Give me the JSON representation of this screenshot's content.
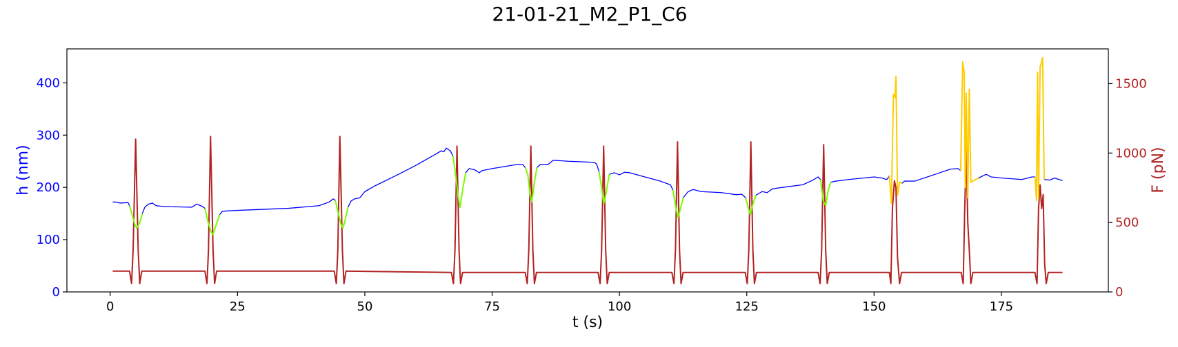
{
  "chart_data": {
    "type": "line",
    "title": "21-01-21_M2_P1_C6",
    "xlabel": "t (s)",
    "ylabel_left": "h (nm)",
    "ylabel_right": "F (pN)",
    "xlim": [
      -8.5,
      196
    ],
    "ylim_left": [
      0,
      465
    ],
    "ylim_right": [
      0,
      1750
    ],
    "x_ticks": [
      0,
      25,
      50,
      75,
      100,
      125,
      150,
      175
    ],
    "y_ticks_left": [
      0,
      100,
      200,
      300,
      400
    ],
    "y_ticks_right": [
      0,
      500,
      1000,
      1500
    ],
    "grid": false,
    "colors": {
      "height": "#0000ff",
      "indent": "#7cfc00",
      "spike": "#ffcc00",
      "force": "#b22222",
      "left_axis": "#0000ff",
      "right_axis": "#b22222"
    },
    "height_series": [
      [
        0.5,
        172
      ],
      [
        1,
        172
      ],
      [
        2,
        170
      ],
      [
        3.5,
        171
      ],
      [
        3.8,
        165
      ],
      [
        4.2,
        152
      ],
      [
        4.8,
        130
      ],
      [
        5.2,
        122
      ],
      [
        5.8,
        132
      ],
      [
        6.3,
        150
      ],
      [
        6.8,
        162
      ],
      [
        7.5,
        168
      ],
      [
        8.3,
        170
      ],
      [
        9,
        165
      ],
      [
        10,
        164
      ],
      [
        12,
        163
      ],
      [
        16,
        162
      ],
      [
        17,
        168
      ],
      [
        18,
        164
      ],
      [
        18.6,
        160
      ],
      [
        19.2,
        135
      ],
      [
        19.8,
        115
      ],
      [
        20.2,
        110
      ],
      [
        20.8,
        128
      ],
      [
        21.5,
        148
      ],
      [
        22,
        154
      ],
      [
        23,
        155
      ],
      [
        25,
        156
      ],
      [
        30,
        158
      ],
      [
        35,
        160
      ],
      [
        41,
        165
      ],
      [
        43,
        172
      ],
      [
        43.8,
        178
      ],
      [
        44.2,
        175
      ],
      [
        44.8,
        150
      ],
      [
        45.3,
        130
      ],
      [
        45.7,
        122
      ],
      [
        46.2,
        140
      ],
      [
        46.7,
        162
      ],
      [
        47.3,
        174
      ],
      [
        48,
        178
      ],
      [
        49,
        180
      ],
      [
        50,
        192
      ],
      [
        52,
        203
      ],
      [
        56,
        222
      ],
      [
        60,
        242
      ],
      [
        64,
        264
      ],
      [
        65,
        270
      ],
      [
        65.5,
        268
      ],
      [
        66,
        275
      ],
      [
        66.8,
        270
      ],
      [
        67.3,
        260
      ],
      [
        67.8,
        228
      ],
      [
        68.3,
        185
      ],
      [
        68.7,
        162
      ],
      [
        69.2,
        195
      ],
      [
        69.8,
        228
      ],
      [
        70.5,
        236
      ],
      [
        71.5,
        234
      ],
      [
        72.5,
        228
      ],
      [
        73,
        232
      ],
      [
        75,
        236
      ],
      [
        80,
        244
      ],
      [
        81,
        244
      ],
      [
        81.5,
        238
      ],
      [
        82,
        225
      ],
      [
        82.4,
        190
      ],
      [
        82.8,
        172
      ],
      [
        83.3,
        210
      ],
      [
        83.8,
        238
      ],
      [
        84.5,
        244
      ],
      [
        86,
        244
      ],
      [
        87,
        252
      ],
      [
        90,
        250
      ],
      [
        95,
        248
      ],
      [
        95.5,
        245
      ],
      [
        96,
        230
      ],
      [
        96.5,
        200
      ],
      [
        96.9,
        168
      ],
      [
        97.4,
        190
      ],
      [
        98,
        225
      ],
      [
        99,
        228
      ],
      [
        100,
        224
      ],
      [
        101,
        229
      ],
      [
        102,
        228
      ],
      [
        105,
        220
      ],
      [
        108,
        212
      ],
      [
        110,
        205
      ],
      [
        110.5,
        195
      ],
      [
        111,
        165
      ],
      [
        111.5,
        142
      ],
      [
        112,
        160
      ],
      [
        112.5,
        180
      ],
      [
        113.5,
        192
      ],
      [
        114.5,
        196
      ],
      [
        116,
        192
      ],
      [
        120,
        190
      ],
      [
        123,
        186
      ],
      [
        124,
        187
      ],
      [
        124.8,
        180
      ],
      [
        125.3,
        160
      ],
      [
        125.7,
        148
      ],
      [
        126.2,
        168
      ],
      [
        126.8,
        185
      ],
      [
        128,
        192
      ],
      [
        129,
        190
      ],
      [
        130,
        197
      ],
      [
        132,
        200
      ],
      [
        136,
        205
      ],
      [
        138,
        214
      ],
      [
        139,
        220
      ],
      [
        139.5,
        215
      ],
      [
        140,
        175
      ],
      [
        140.5,
        165
      ],
      [
        141,
        195
      ],
      [
        141.5,
        210
      ],
      [
        142.5,
        212
      ],
      [
        145,
        215
      ],
      [
        150,
        220
      ],
      [
        151.5,
        218
      ],
      [
        152.5,
        215
      ],
      [
        153,
        222
      ],
      [
        153.4,
        170
      ],
      [
        153.8,
        378
      ],
      [
        154.1,
        372
      ],
      [
        154.3,
        412
      ],
      [
        154.6,
        185
      ],
      [
        155,
        210
      ],
      [
        155.5,
        208
      ],
      [
        156,
        212
      ],
      [
        158,
        212
      ],
      [
        162,
        225
      ],
      [
        165,
        235
      ],
      [
        166.5,
        236
      ],
      [
        167,
        232
      ],
      [
        167.4,
        440
      ],
      [
        167.7,
        420
      ],
      [
        167.9,
        200
      ],
      [
        168.1,
        380
      ],
      [
        168.4,
        180
      ],
      [
        168.7,
        388
      ],
      [
        169,
        210
      ],
      [
        170.5,
        218
      ],
      [
        172,
        225
      ],
      [
        173,
        220
      ],
      [
        175,
        218
      ],
      [
        179,
        215
      ],
      [
        181,
        220
      ],
      [
        181.6,
        220
      ],
      [
        181.9,
        175
      ],
      [
        182.1,
        420
      ],
      [
        182.3,
        180
      ],
      [
        182.6,
        430
      ],
      [
        182.9,
        440
      ],
      [
        183.1,
        448
      ],
      [
        183.4,
        215
      ],
      [
        184.5,
        214
      ],
      [
        185.5,
        218
      ],
      [
        186,
        216
      ],
      [
        187,
        213
      ]
    ],
    "indent_ranges": [
      [
        3.8,
        6.3
      ],
      [
        18.6,
        21.5
      ],
      [
        44.2,
        46.7
      ],
      [
        67.3,
        69.8
      ],
      [
        81.5,
        83.8
      ],
      [
        96,
        98
      ],
      [
        110.5,
        112.5
      ],
      [
        124.8,
        126.8
      ],
      [
        139.5,
        141.5
      ]
    ],
    "spike_ranges": [
      [
        153,
        155.5
      ],
      [
        167,
        170.5
      ],
      [
        181.6,
        183.4
      ]
    ],
    "force_series": [
      [
        0.5,
        150
      ],
      [
        3.8,
        150
      ],
      [
        4.2,
        60
      ],
      [
        4.5,
        300
      ],
      [
        5,
        1100
      ],
      [
        5.5,
        300
      ],
      [
        5.8,
        60
      ],
      [
        6.2,
        150
      ],
      [
        18.6,
        150
      ],
      [
        19,
        60
      ],
      [
        19.3,
        300
      ],
      [
        19.7,
        1120
      ],
      [
        20.2,
        300
      ],
      [
        20.5,
        60
      ],
      [
        20.9,
        150
      ],
      [
        44,
        150
      ],
      [
        44.4,
        60
      ],
      [
        44.7,
        300
      ],
      [
        45.1,
        1120
      ],
      [
        45.6,
        300
      ],
      [
        45.9,
        60
      ],
      [
        46.3,
        150
      ],
      [
        67,
        140
      ],
      [
        67.4,
        60
      ],
      [
        67.7,
        300
      ],
      [
        68.1,
        1050
      ],
      [
        68.5,
        300
      ],
      [
        68.8,
        60
      ],
      [
        69.2,
        140
      ],
      [
        81.5,
        140
      ],
      [
        81.9,
        60
      ],
      [
        82.2,
        300
      ],
      [
        82.6,
        1050
      ],
      [
        83,
        300
      ],
      [
        83.3,
        60
      ],
      [
        83.7,
        140
      ],
      [
        95.8,
        140
      ],
      [
        96.2,
        60
      ],
      [
        96.5,
        300
      ],
      [
        96.9,
        1050
      ],
      [
        97.3,
        300
      ],
      [
        97.6,
        60
      ],
      [
        98,
        140
      ],
      [
        110.3,
        140
      ],
      [
        110.7,
        60
      ],
      [
        111,
        300
      ],
      [
        111.4,
        1080
      ],
      [
        111.8,
        300
      ],
      [
        112.1,
        60
      ],
      [
        112.5,
        140
      ],
      [
        124.7,
        140
      ],
      [
        125.1,
        60
      ],
      [
        125.4,
        300
      ],
      [
        125.8,
        1080
      ],
      [
        126.2,
        300
      ],
      [
        126.5,
        60
      ],
      [
        126.9,
        140
      ],
      [
        139,
        140
      ],
      [
        139.4,
        60
      ],
      [
        139.7,
        300
      ],
      [
        140.1,
        1060
      ],
      [
        140.5,
        300
      ],
      [
        140.8,
        60
      ],
      [
        141.2,
        140
      ],
      [
        153,
        140
      ],
      [
        153.3,
        60
      ],
      [
        153.6,
        600
      ],
      [
        154,
        800
      ],
      [
        154.3,
        750
      ],
      [
        154.6,
        250
      ],
      [
        155,
        60
      ],
      [
        155.4,
        140
      ],
      [
        167.1,
        140
      ],
      [
        167.5,
        60
      ],
      [
        167.8,
        600
      ],
      [
        168.1,
        1020
      ],
      [
        168.4,
        500
      ],
      [
        168.7,
        300
      ],
      [
        169,
        60
      ],
      [
        169.4,
        140
      ],
      [
        181.6,
        140
      ],
      [
        182,
        60
      ],
      [
        182.3,
        600
      ],
      [
        182.6,
        770
      ],
      [
        182.9,
        600
      ],
      [
        183.2,
        700
      ],
      [
        183.5,
        200
      ],
      [
        183.8,
        60
      ],
      [
        184.2,
        140
      ],
      [
        187,
        140
      ]
    ]
  }
}
